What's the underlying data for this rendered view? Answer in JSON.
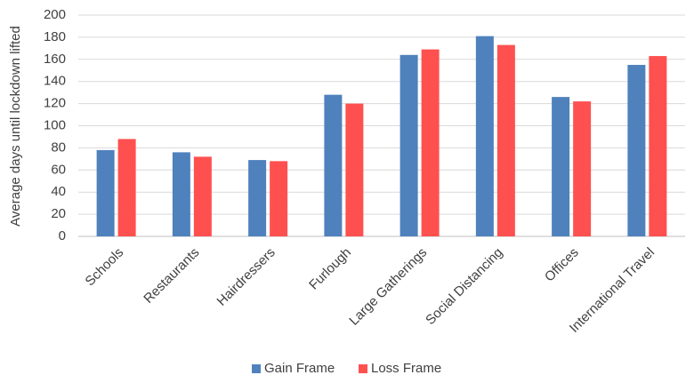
{
  "chart_data": {
    "type": "grouped-bar",
    "y_label": "Average days until lockdown lifted",
    "categories": [
      "Schools",
      "Restaurants",
      "Hairdressers",
      "Furlough",
      "Large Gatherings",
      "Social Distancing",
      "Offices",
      "International Travel"
    ],
    "series": [
      {
        "name": "Gain Frame",
        "color": "#4f81bd",
        "values": [
          78,
          76,
          69,
          128,
          164,
          181,
          126,
          155
        ]
      },
      {
        "name": "Loss Frame",
        "color": "#ff5050",
        "values": [
          88,
          72,
          68,
          120,
          169,
          173,
          122,
          163
        ]
      }
    ],
    "ylim": [
      0,
      200
    ],
    "yticks": [
      0,
      20,
      40,
      60,
      80,
      100,
      120,
      140,
      160,
      180,
      200
    ],
    "grid": true,
    "legend": "bottom"
  }
}
